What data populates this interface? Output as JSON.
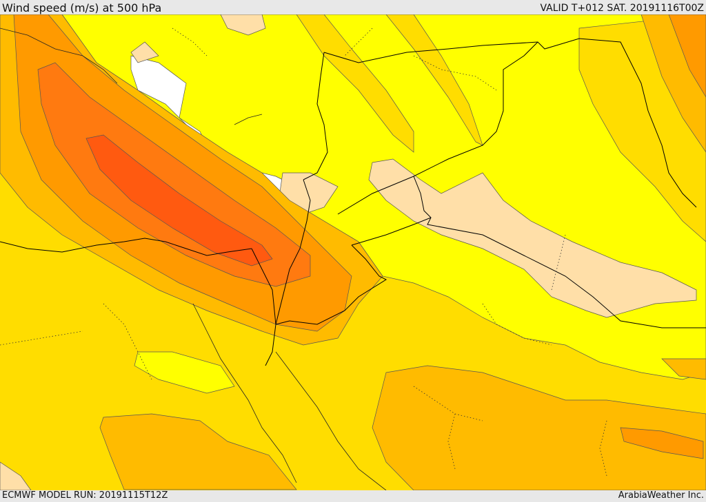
{
  "header": {
    "title": "Wind speed (m/s) at 500 hPa",
    "valid": "VALID T+012 SAT. 20191116T00Z"
  },
  "footer": {
    "model_run": "ECMWF MODEL RUN: 20191115T12Z",
    "credit": "ArabiaWeather Inc."
  },
  "map": {
    "variable": "wind speed at 500 hPa",
    "colors": {
      "lowest": "#ffffff",
      "light": "#ffdfa8",
      "yellow": "#ffff00",
      "gold": "#ffdd00",
      "amber": "#ffbb00",
      "orange_light": "#ff9a00",
      "orange": "#ff7a10",
      "orange_dark": "#ff5a10",
      "contour": "#555555",
      "border": "#000000"
    }
  }
}
